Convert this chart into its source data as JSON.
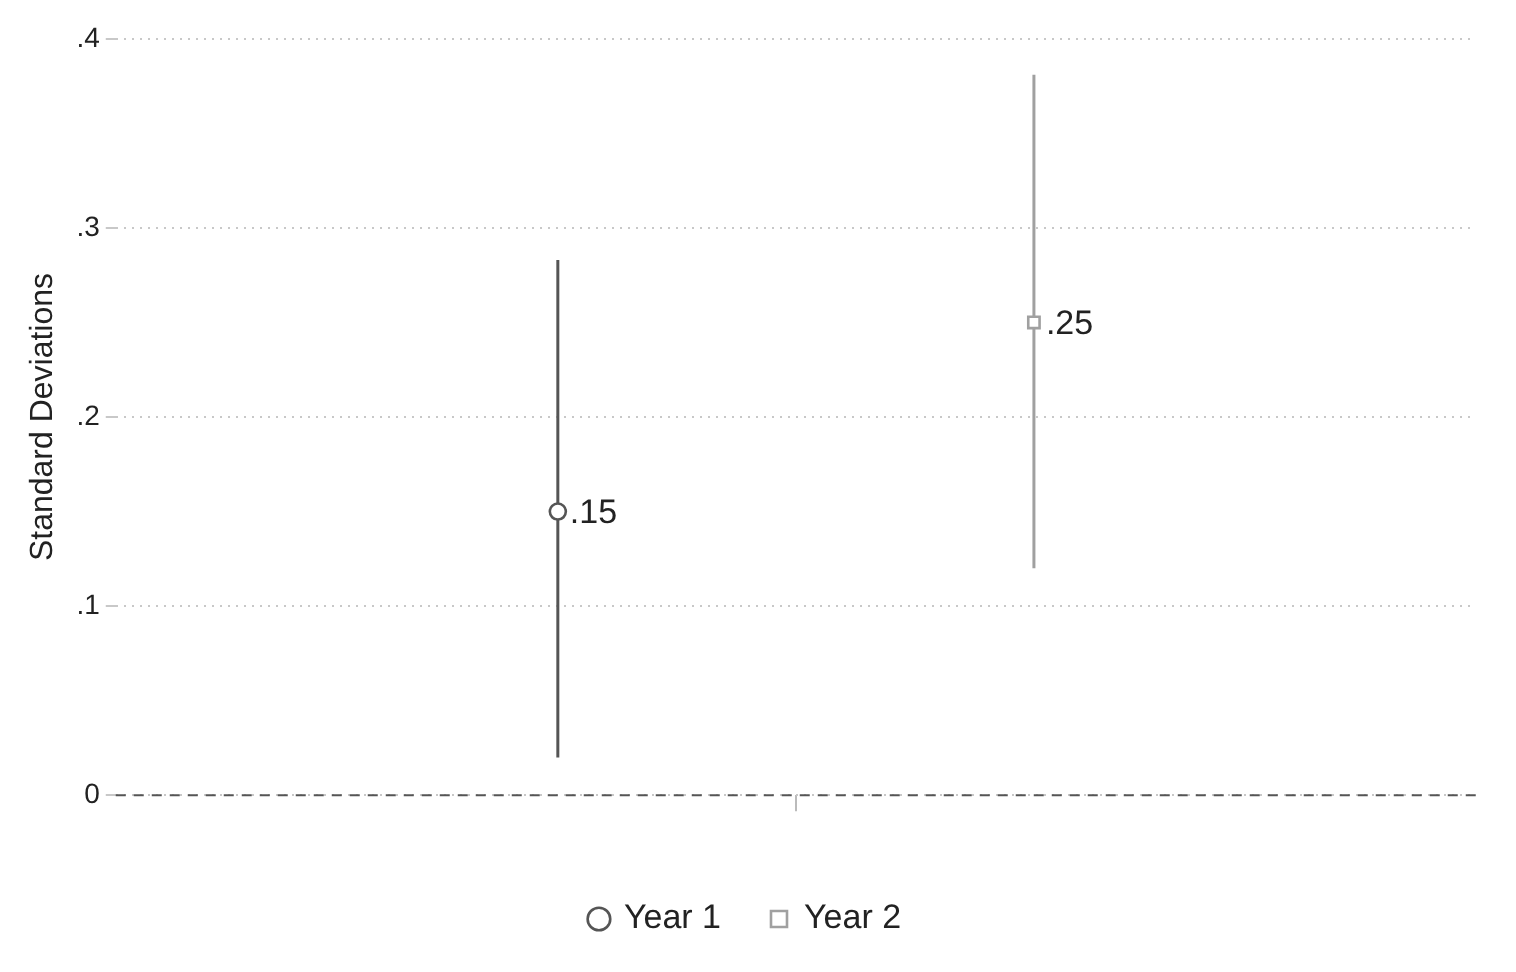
{
  "chart_data": {
    "type": "scatter",
    "ylabel": "Standard Deviations",
    "categories": [
      null
    ],
    "series": [
      {
        "name": "Year 1",
        "color": "#555555",
        "marker": "circle",
        "values": [
          0.15
        ],
        "errors": [
          [
            0.02,
            0.283
          ]
        ],
        "value_labels": [
          ".15"
        ]
      },
      {
        "name": "Year 2",
        "color": "#a0a0a0",
        "marker": "square",
        "values": [
          0.25
        ],
        "errors": [
          [
            0.12,
            0.381
          ]
        ],
        "value_labels": [
          ".25"
        ]
      }
    ],
    "ylim": [
      0,
      0.4
    ],
    "yticks": [
      0,
      {
        "value": 0.1,
        "label": ".1"
      },
      {
        "value": 0.2,
        "label": ".2"
      },
      {
        "value": 0.3,
        "label": ".3"
      },
      {
        "value": 0.4,
        "label": ".4"
      }
    ],
    "ref_lines": [
      {
        "axis": "y",
        "value": 0,
        "color": "#555555",
        "line_style": "dashed"
      }
    ],
    "grid": "y",
    "line_style": "dotted",
    "legend": "bottom"
  }
}
